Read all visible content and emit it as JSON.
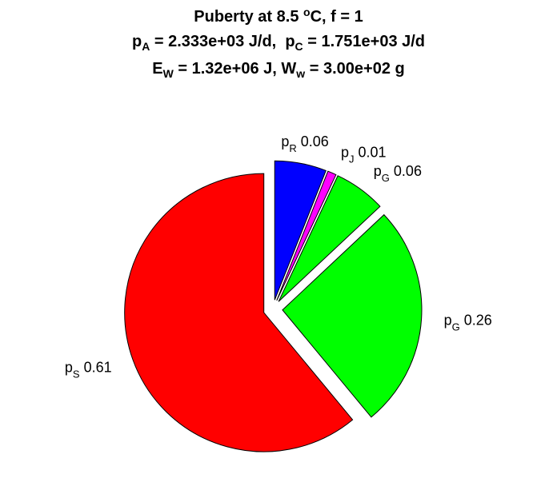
{
  "chart_data": {
    "type": "pie",
    "title": {
      "line1": {
        "text_before_sup": "Puberty at 8.5 ",
        "sup": "o",
        "text_after_sup": "C, f = 1"
      },
      "line2": {
        "a_main": "p",
        "a_sub": "A",
        "a_rest": " = 2.333e+03 J/d,  ",
        "c_main": "p",
        "c_sub": "C",
        "c_rest": " = 1.751e+03 J/d"
      },
      "line3": {
        "e_main": "E",
        "e_sub": "W",
        "e_rest": " = 1.32e+06 J, ",
        "w_main": "W",
        "w_sub": "w",
        "w_rest": " = 3.00e+02 g"
      }
    },
    "slices": [
      {
        "main": "p",
        "sub": "R",
        "value_label": " 0.06",
        "value": 0.06,
        "color": "#0000ff",
        "exploded": true
      },
      {
        "main": "p",
        "sub": "J",
        "value_label": " 0.01",
        "value": 0.01,
        "color": "#ff00ff",
        "exploded": true
      },
      {
        "main": "p",
        "sub": "G",
        "value_label": " 0.06",
        "value": 0.06,
        "color": "#00ff00",
        "exploded": true
      },
      {
        "main": "p",
        "sub": "G",
        "value_label": " 0.26",
        "value": 0.26,
        "color": "#00ff00",
        "exploded": true
      },
      {
        "main": "p",
        "sub": "S",
        "value_label": " 0.61",
        "value": 0.61,
        "color": "#ff0000",
        "exploded": true
      }
    ]
  }
}
